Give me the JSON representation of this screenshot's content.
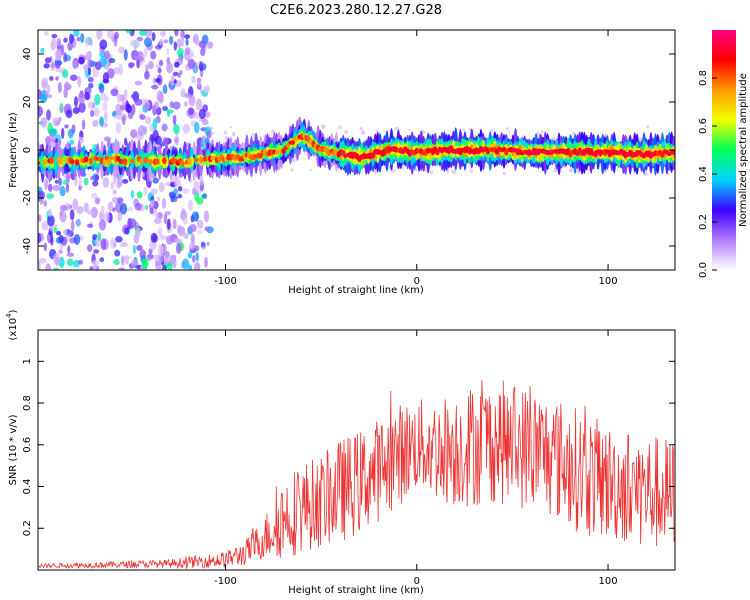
{
  "title": "C2E6.2023.280.12.27.G28",
  "chart_data": [
    {
      "type": "heatmap",
      "xlabel": "Height of straight line (km)",
      "ylabel": "Frequency (Hz)",
      "xlim": [
        -198,
        135
      ],
      "ylim": [
        -50,
        50
      ],
      "xticks": [
        -100,
        0,
        100
      ],
      "yticks": [
        -40,
        -20,
        0,
        20,
        40
      ],
      "colorbar": {
        "label": "Normalized spectral amplitude",
        "range": [
          0,
          1
        ],
        "ticks": [
          "0.0",
          "0.2",
          "0.4",
          "0.6",
          "0.8"
        ],
        "tick_values": [
          0.0,
          0.2,
          0.4,
          0.6,
          0.8
        ],
        "colors": [
          "#ffffff",
          "#b27bff",
          "#3b00ff",
          "#00d5ff",
          "#00ff5a",
          "#f2ff00",
          "#ff9a00",
          "#ff0000",
          "#ff007f"
        ]
      },
      "ridge": {
        "x": [
          -198,
          -160,
          -120,
          -110,
          -90,
          -70,
          -60,
          -50,
          -30,
          -20,
          -10,
          0,
          20,
          40,
          60,
          80,
          100,
          120,
          135
        ],
        "freq_hz": [
          -5,
          -4,
          -5,
          -4,
          -3,
          0,
          6,
          0,
          -3,
          -1,
          0,
          -1,
          0,
          0,
          -1,
          -1,
          -1,
          -2,
          -1
        ]
      }
    },
    {
      "type": "line",
      "xlabel": "Height of straight line (km)",
      "ylabel": "SNR (10 * v/v)",
      "yscale_label": "(x10",
      "yscale_exp": "4",
      "xlim": [
        -198,
        135
      ],
      "ylim": [
        0,
        1.15
      ],
      "xticks": [
        -100,
        0,
        100
      ],
      "yticks": [
        0.2,
        0.4,
        0.6,
        0.8,
        1
      ],
      "color": "#ee3333",
      "envelope": {
        "x": [
          -198,
          -130,
          -100,
          -90,
          -80,
          -75,
          -70,
          -60,
          -50,
          -40,
          -30,
          -20,
          -10,
          0,
          10,
          20,
          30,
          40,
          50,
          60,
          70,
          80,
          90,
          100,
          110,
          120,
          135
        ],
        "base": [
          0.02,
          0.03,
          0.05,
          0.08,
          0.15,
          0.2,
          0.25,
          0.3,
          0.33,
          0.38,
          0.42,
          0.48,
          0.55,
          0.6,
          0.58,
          0.58,
          0.6,
          0.62,
          0.6,
          0.58,
          0.55,
          0.5,
          0.45,
          0.42,
          0.4,
          0.38,
          0.35
        ],
        "amp": [
          0.01,
          0.02,
          0.04,
          0.06,
          0.1,
          0.15,
          0.2,
          0.22,
          0.22,
          0.25,
          0.25,
          0.25,
          0.25,
          0.22,
          0.25,
          0.28,
          0.3,
          0.3,
          0.3,
          0.3,
          0.3,
          0.3,
          0.3,
          0.28,
          0.28,
          0.28,
          0.28
        ]
      }
    }
  ]
}
